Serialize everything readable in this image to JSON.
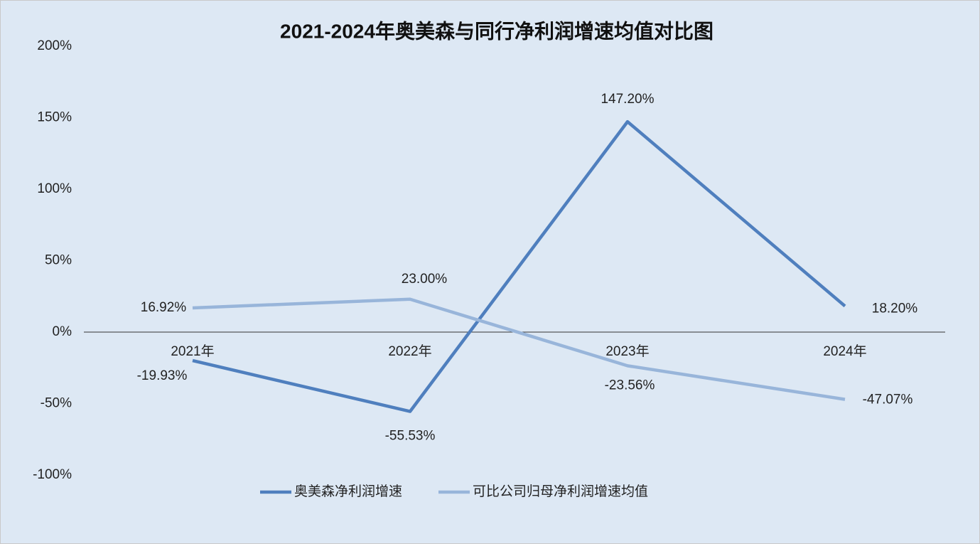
{
  "chart_data": {
    "type": "line",
    "title": "2021-2024年奥美森与同行净利润增速均值对比图",
    "categories": [
      "2021年",
      "2022年",
      "2023年",
      "2024年"
    ],
    "series": [
      {
        "name": "奥美森净利润增速",
        "color": "#4f7fbe",
        "values": [
          -19.93,
          -55.53,
          147.2,
          18.2
        ],
        "value_labels": [
          "-19.93%",
          "-55.53%",
          "147.20%",
          "18.20%"
        ]
      },
      {
        "name": "可比公司归母净利润增速均值",
        "color": "#98b5da",
        "values": [
          16.92,
          23.0,
          -23.56,
          -47.07
        ],
        "value_labels": [
          "16.92%",
          "23.00%",
          "-23.56%",
          "-47.07%"
        ]
      }
    ],
    "ylim": [
      -100,
      200
    ],
    "yticks": [
      {
        "value": -100,
        "label": "-100%"
      },
      {
        "value": -50,
        "label": "-50%"
      },
      {
        "value": 0,
        "label": "0%"
      },
      {
        "value": 50,
        "label": "50%"
      },
      {
        "value": 100,
        "label": "100%"
      },
      {
        "value": 150,
        "label": "150%"
      },
      {
        "value": 200,
        "label": "200%"
      }
    ],
    "legend": "bottom"
  }
}
